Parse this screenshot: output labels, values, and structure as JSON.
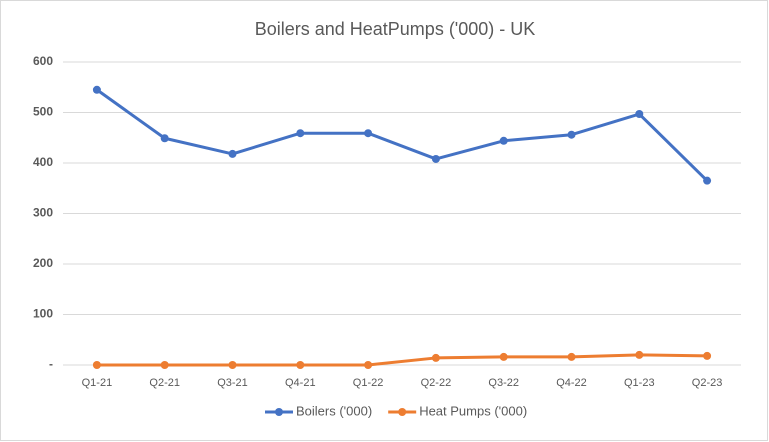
{
  "chart_data": {
    "type": "line",
    "title": "Boilers and HeatPumps ('000) - UK",
    "categories": [
      "Q1-21",
      "Q2-21",
      "Q3-21",
      "Q4-21",
      "Q1-22",
      "Q2-22",
      "Q3-22",
      "Q4-22",
      "Q1-23",
      "Q2-23"
    ],
    "series": [
      {
        "name": "Boilers ('000)",
        "color": "#4472c4",
        "values": [
          545,
          449,
          418,
          459,
          459,
          408,
          444,
          456,
          497,
          365
        ]
      },
      {
        "name": "Heat Pumps ('000)",
        "color": "#ed7d31",
        "values": [
          0,
          0,
          0,
          0,
          0,
          14,
          16,
          16,
          20,
          18
        ]
      }
    ],
    "ylim": [
      0,
      600
    ],
    "yticks": [
      {
        "value": 0,
        "label": "-"
      },
      100,
      200,
      300,
      400,
      500,
      600
    ],
    "grid": true,
    "legend": "bottom"
  }
}
